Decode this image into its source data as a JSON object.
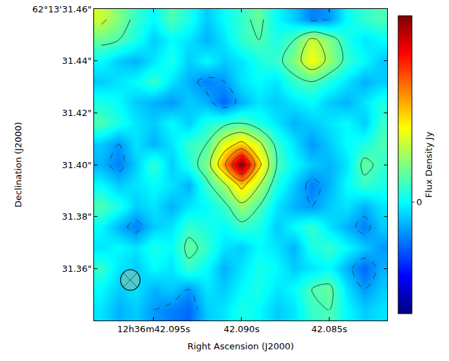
{
  "chart_data": {
    "type": "heatmap",
    "x_label": "Right Ascension (J2000)",
    "y_label": "Declination (J2000)",
    "colorbar_label": "Flux Density Jy",
    "x": [
      42.098,
      42.097,
      42.096,
      42.095,
      42.094,
      42.093,
      42.092,
      42.091,
      42.09,
      42.089,
      42.088,
      42.087,
      42.086,
      42.085,
      42.084,
      42.083,
      42.082
    ],
    "y": [
      31.456,
      31.448,
      31.44,
      31.432,
      31.424,
      31.416,
      31.408,
      31.4,
      31.392,
      31.384,
      31.376,
      31.368,
      31.36,
      31.352,
      31.344
    ],
    "z": [
      [
        8e-06,
        5e-06,
        2e-06,
        0,
        3e-06,
        1e-06,
        -2e-06,
        0,
        2e-06,
        4e-06,
        0,
        -2e-06,
        -5e-06,
        -4e-06,
        0,
        2e-06,
        3e-06
      ],
      [
        4e-06,
        3e-06,
        1e-06,
        -2e-06,
        0,
        -1e-06,
        -3e-06,
        -1e-06,
        2e-06,
        3e-06,
        1e-06,
        3e-06,
        8e-06,
        5e-06,
        1e-06,
        -1e-06,
        0
      ],
      [
        0,
        -2e-06,
        -3e-06,
        -1e-06,
        1e-06,
        -2e-06,
        0,
        -2e-06,
        -1e-06,
        1e-06,
        2e-06,
        5e-06,
        1e-05,
        6e-06,
        2e-06,
        0,
        -2e-06
      ],
      [
        -2e-06,
        -1e-06,
        0,
        2e-06,
        -1e-06,
        -3e-06,
        -5e-06,
        -4e-06,
        -1e-06,
        0,
        -1e-06,
        2e-06,
        3e-06,
        1e-06,
        -1e-06,
        -3e-06,
        -2e-06
      ],
      [
        1e-06,
        0,
        -2e-06,
        -3e-06,
        -4e-06,
        -2e-06,
        -3e-06,
        -6e-06,
        -3e-06,
        -1e-06,
        -2e-06,
        -1e-06,
        0,
        -2e-06,
        -3e-06,
        -1e-06,
        1e-06
      ],
      [
        3e-06,
        1e-06,
        -1e-06,
        -2e-06,
        0,
        -2e-06,
        1e-06,
        2e-06,
        3e-06,
        1e-06,
        -1e-06,
        -3e-06,
        -2e-06,
        -1e-06,
        0,
        -2e-06,
        2e-06
      ],
      [
        -2e-06,
        -4e-06,
        -1e-06,
        -3e-06,
        -1e-06,
        2e-06,
        3e-06,
        9e-06,
        1.2e-05,
        8e-06,
        2e-06,
        -1e-06,
        -4e-06,
        -2e-06,
        0,
        1e-06,
        3e-06
      ],
      [
        -3e-06,
        -5e-06,
        -2e-06,
        2e-06,
        -2e-06,
        1e-06,
        5e-06,
        1.4e-05,
        2.5e-05,
        1.2e-05,
        3e-06,
        0,
        -2e-06,
        -3e-06,
        -1e-06,
        4e-06,
        2e-06
      ],
      [
        0,
        -2e-06,
        -1e-06,
        0,
        -1e-06,
        -3e-06,
        2e-06,
        6e-06,
        1.2e-05,
        7e-06,
        1e-06,
        -2e-06,
        -5e-06,
        -3e-06,
        0,
        2e-06,
        1e-06
      ],
      [
        3e-06,
        1e-06,
        -2e-06,
        -1e-06,
        -3e-06,
        -1e-06,
        0,
        2e-06,
        6e-06,
        3e-06,
        -1e-06,
        -3e-06,
        -4e-06,
        -2e-06,
        -1e-06,
        -3e-06,
        -1e-06
      ],
      [
        0,
        -3e-06,
        -5e-06,
        -2e-06,
        -1e-06,
        2e-06,
        1e-06,
        0,
        2e-06,
        1e-06,
        -2e-06,
        0,
        2e-06,
        -1e-06,
        -3e-06,
        -5e-06,
        -2e-06
      ],
      [
        -1e-06,
        0,
        -1e-06,
        1e-06,
        0,
        4e-06,
        2e-06,
        -1e-06,
        -2e-06,
        0,
        -1e-06,
        -3e-06,
        1e-06,
        2e-06,
        0,
        -2e-06,
        -4e-06
      ],
      [
        2e-06,
        -1e-06,
        -2e-06,
        0,
        -1e-06,
        2e-06,
        0,
        -3e-06,
        -1e-06,
        1e-06,
        0,
        -2e-06,
        -1e-06,
        0,
        -3e-06,
        -6e-06,
        -3e-06
      ],
      [
        0,
        -2e-06,
        -1e-06,
        -3e-06,
        -2e-06,
        -4e-06,
        -1e-06,
        -2e-06,
        0,
        1e-06,
        -1e-06,
        0,
        3e-06,
        4e-06,
        -1e-06,
        -4e-06,
        -2e-06
      ],
      [
        -1e-06,
        -3e-06,
        -2e-06,
        -4e-06,
        -5e-06,
        -6e-06,
        -2e-06,
        -1e-06,
        1e-06,
        0,
        -2e-06,
        -1e-06,
        2e-06,
        3e-06,
        0,
        -2e-06,
        -1e-06
      ]
    ],
    "xlim": [
      42.0984,
      42.0817
    ],
    "ylim": [
      31.34,
      31.46
    ],
    "xticks": [
      {
        "value": 42.095,
        "label": "12h36m42.095s"
      },
      {
        "value": 42.09,
        "label": "42.090s"
      },
      {
        "value": 42.085,
        "label": "42.085s"
      }
    ],
    "yticks": [
      {
        "value": 31.36,
        "label": "31.36\""
      },
      {
        "value": 31.38,
        "label": "31.38\""
      },
      {
        "value": 31.4,
        "label": "31.40\""
      },
      {
        "value": 31.42,
        "label": "31.42\""
      },
      {
        "value": 31.44,
        "label": "31.44\""
      },
      {
        "value": 31.46,
        "label": "62°13'31.46\""
      }
    ],
    "zlim": [
      -1.5e-05,
      2.5e-05
    ],
    "zticks": [
      0
    ],
    "contour_levels": {
      "negative": [
        -4e-06
      ],
      "positive": [
        3e-06,
        7e-06,
        1.1e-05,
        1.5e-05,
        1.9e-05,
        2.3e-05
      ]
    }
  }
}
